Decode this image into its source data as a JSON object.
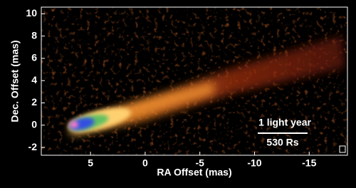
{
  "chart_data": {
    "type": "image",
    "xlabel": "RA Offset (mas)",
    "ylabel": "Dec. Offset (mas)",
    "xlim": [
      9.5,
      -18.5
    ],
    "ylim": [
      -2.7,
      10.6
    ],
    "xticks": [
      5,
      0,
      -5,
      -10,
      -15
    ],
    "yticks": [
      -2,
      0,
      2,
      4,
      6,
      8,
      10
    ],
    "annotations": [
      "1 light year",
      "530 Rs"
    ]
  }
}
